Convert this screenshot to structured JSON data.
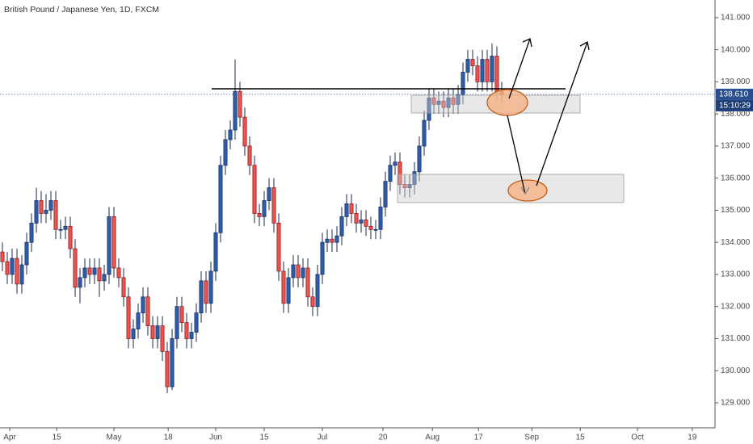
{
  "chart_data": {
    "type": "candlestick",
    "title": "British Pound / Japanese Yen, 1D, FXCM",
    "open": [
      133.7,
      133.4,
      133.0,
      133.5,
      132.7,
      133.3,
      134.0,
      134.6,
      135.3,
      134.9,
      135.0,
      135.3,
      134.4,
      134.4,
      134.5,
      133.8,
      132.6,
      132.9,
      133.2,
      133.0,
      133.2,
      132.8,
      133.0,
      134.8,
      133.2,
      132.9,
      132.3,
      131.0,
      131.3,
      131.8,
      132.3,
      131.4,
      131.0,
      131.4,
      130.6,
      129.5,
      131.0,
      132.0,
      131.5,
      131.0,
      131.2,
      131.8,
      132.8,
      132.1,
      133.1,
      134.3,
      136.4,
      137.2,
      137.5,
      138.7,
      137.9,
      137.0,
      136.4,
      134.9,
      134.8,
      135.3,
      135.7,
      134.6,
      133.1,
      132.1,
      132.9,
      133.3,
      132.9,
      133.2,
      132.3,
      132.0,
      133.0,
      134.0,
      134.1,
      134.0,
      134.2,
      134.8,
      135.2,
      134.9,
      134.6,
      134.7,
      134.5,
      134.4,
      134.4,
      135.1,
      135.9,
      136.4,
      136.5,
      135.8,
      135.7,
      135.8,
      136.2,
      137.0,
      137.8,
      138.5,
      138.3,
      138.4,
      138.2,
      138.5,
      138.3,
      138.6,
      139.3,
      139.7,
      139.5,
      139.0,
      139.7,
      139.0,
      139.8,
      138.7
    ],
    "high": [
      134.0,
      133.7,
      133.8,
      133.8,
      133.6,
      134.3,
      134.9,
      135.7,
      135.6,
      135.5,
      135.6,
      135.6,
      134.7,
      134.8,
      134.8,
      134.1,
      133.2,
      133.5,
      133.5,
      133.5,
      133.5,
      133.3,
      135.1,
      135.1,
      133.5,
      133.2,
      132.6,
      131.6,
      132.1,
      132.6,
      132.6,
      131.7,
      131.7,
      131.7,
      130.9,
      131.3,
      132.3,
      132.3,
      131.8,
      131.5,
      132.1,
      133.1,
      133.1,
      133.4,
      134.6,
      136.7,
      137.5,
      137.8,
      139.7,
      139.0,
      138.2,
      137.3,
      136.7,
      135.2,
      135.6,
      136.0,
      136.0,
      134.9,
      133.4,
      133.2,
      133.6,
      133.6,
      133.5,
      133.5,
      132.6,
      133.3,
      134.3,
      134.4,
      134.4,
      134.5,
      135.1,
      135.5,
      135.5,
      135.2,
      135.0,
      135.0,
      134.8,
      134.7,
      135.4,
      136.2,
      136.7,
      136.8,
      136.8,
      136.1,
      136.1,
      136.5,
      137.3,
      138.1,
      138.8,
      138.8,
      138.7,
      138.7,
      138.8,
      138.8,
      138.9,
      139.6,
      140.0,
      140.0,
      139.8,
      140.0,
      140.0,
      140.2,
      140.1,
      139.0
    ],
    "low": [
      133.1,
      132.7,
      132.7,
      132.4,
      132.4,
      133.0,
      133.7,
      134.3,
      134.6,
      134.6,
      134.7,
      134.1,
      134.1,
      134.1,
      133.5,
      132.3,
      132.1,
      132.6,
      132.7,
      132.7,
      132.3,
      132.5,
      132.7,
      132.9,
      132.6,
      132.0,
      130.7,
      130.7,
      131.0,
      131.5,
      131.1,
      130.7,
      130.7,
      130.3,
      129.3,
      129.4,
      130.7,
      131.2,
      130.7,
      130.7,
      130.9,
      131.5,
      131.8,
      131.8,
      132.8,
      134.0,
      136.1,
      136.9,
      137.2,
      137.6,
      136.7,
      136.1,
      134.6,
      134.5,
      134.5,
      135.0,
      134.3,
      132.8,
      131.8,
      131.8,
      132.6,
      132.6,
      132.6,
      132.0,
      131.7,
      131.7,
      132.7,
      133.7,
      133.7,
      133.7,
      133.9,
      134.5,
      134.6,
      134.3,
      134.3,
      134.2,
      134.1,
      134.1,
      134.1,
      134.8,
      135.6,
      136.1,
      135.5,
      135.4,
      135.4,
      135.5,
      135.9,
      136.7,
      137.5,
      138.0,
      138.0,
      137.9,
      137.9,
      138.0,
      138.0,
      138.3,
      139.0,
      139.2,
      138.7,
      138.7,
      138.7,
      138.7,
      138.4,
      138.31
    ],
    "close": [
      133.4,
      133.0,
      133.5,
      132.7,
      133.3,
      134.0,
      134.6,
      135.3,
      134.9,
      135.0,
      135.3,
      134.4,
      134.4,
      134.5,
      133.8,
      132.6,
      132.9,
      133.2,
      133.0,
      133.2,
      132.8,
      133.0,
      134.8,
      133.2,
      132.9,
      132.3,
      131.0,
      131.3,
      131.8,
      132.3,
      131.4,
      131.0,
      131.4,
      130.6,
      129.5,
      131.0,
      132.0,
      131.5,
      131.0,
      131.2,
      131.8,
      132.8,
      132.1,
      133.1,
      134.3,
      136.4,
      137.2,
      137.5,
      138.7,
      137.9,
      137.0,
      136.4,
      134.9,
      134.8,
      135.3,
      135.7,
      134.6,
      133.1,
      132.1,
      132.9,
      133.3,
      132.9,
      133.2,
      132.3,
      132.0,
      133.0,
      134.0,
      134.1,
      134.0,
      134.2,
      134.8,
      135.2,
      134.9,
      134.6,
      134.7,
      134.5,
      134.4,
      134.4,
      135.1,
      135.9,
      136.4,
      136.5,
      135.8,
      135.7,
      135.8,
      136.2,
      137.0,
      137.8,
      138.5,
      138.3,
      138.4,
      138.2,
      138.5,
      138.3,
      138.6,
      139.3,
      139.7,
      139.5,
      139.0,
      139.7,
      139.0,
      139.8,
      138.7,
      138.61
    ],
    "up_color": "#2f5ea8",
    "down_color": "#ef5350",
    "xlim": [
      -0.5,
      147
    ],
    "xticks": [
      {
        "value": 1.5,
        "label": "Apr"
      },
      {
        "value": 11.2,
        "label": "15"
      },
      {
        "value": 23,
        "label": "May"
      },
      {
        "value": 34.2,
        "label": "18"
      },
      {
        "value": 44,
        "label": "Jun"
      },
      {
        "value": 54,
        "label": "15"
      },
      {
        "value": 66,
        "label": "Jul"
      },
      {
        "value": 78.5,
        "label": "20"
      },
      {
        "value": 88.7,
        "label": "Aug"
      },
      {
        "value": 98.2,
        "label": "17"
      },
      {
        "value": 109.2,
        "label": "Sep"
      },
      {
        "value": 119.2,
        "label": "15"
      },
      {
        "value": 131,
        "label": "Oct"
      },
      {
        "value": 142.3,
        "label": "19"
      }
    ],
    "ylim": [
      128.22,
      141.55
    ],
    "yticks": [
      {
        "value": 129,
        "label": "129.000"
      },
      {
        "value": 130,
        "label": "130.000"
      },
      {
        "value": 131,
        "label": "131.000"
      },
      {
        "value": 132,
        "label": "132.000"
      },
      {
        "value": 133,
        "label": "133.000"
      },
      {
        "value": 134,
        "label": "134.000"
      },
      {
        "value": 135,
        "label": "135.000"
      },
      {
        "value": 136,
        "label": "136.000"
      },
      {
        "value": 137,
        "label": "137.000"
      },
      {
        "value": 138,
        "label": "138.000"
      },
      {
        "value": 139,
        "label": "139.000"
      },
      {
        "value": 140,
        "label": "140.000"
      },
      {
        "value": 141,
        "label": "141.000"
      }
    ],
    "grid": false,
    "last_price": {
      "value": 138.61,
      "label": "138.610"
    },
    "countdown": "15:10:29"
  }
}
